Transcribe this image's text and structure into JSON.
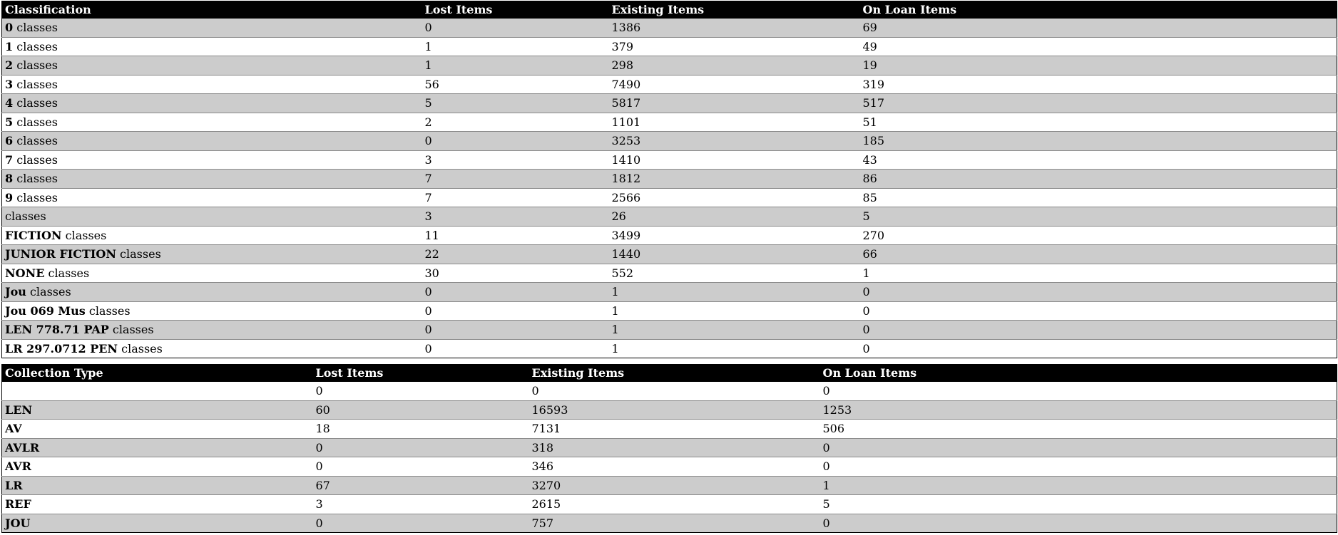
{
  "classification_table": {
    "headers": {
      "col1": "Classification",
      "col2": "Lost Items",
      "col3": "Existing Items",
      "col4": "On Loan Items"
    },
    "rows": [
      {
        "code": "0",
        "suffix": " classes",
        "lost": "0",
        "existing": "1386",
        "on_loan": "69"
      },
      {
        "code": "1",
        "suffix": " classes",
        "lost": "1",
        "existing": "379",
        "on_loan": "49"
      },
      {
        "code": "2",
        "suffix": " classes",
        "lost": "1",
        "existing": "298",
        "on_loan": "19"
      },
      {
        "code": "3",
        "suffix": " classes",
        "lost": "56",
        "existing": "7490",
        "on_loan": "319"
      },
      {
        "code": "4",
        "suffix": " classes",
        "lost": "5",
        "existing": "5817",
        "on_loan": "517"
      },
      {
        "code": "5",
        "suffix": " classes",
        "lost": "2",
        "existing": "1101",
        "on_loan": "51"
      },
      {
        "code": "6",
        "suffix": " classes",
        "lost": "0",
        "existing": "3253",
        "on_loan": "185"
      },
      {
        "code": "7",
        "suffix": " classes",
        "lost": "3",
        "existing": "1410",
        "on_loan": "43"
      },
      {
        "code": "8",
        "suffix": " classes",
        "lost": "7",
        "existing": "1812",
        "on_loan": "86"
      },
      {
        "code": "9",
        "suffix": " classes",
        "lost": "7",
        "existing": "2566",
        "on_loan": "85"
      },
      {
        "code": "",
        "suffix": "classes",
        "lost": "3",
        "existing": "26",
        "on_loan": "5"
      },
      {
        "code": "FICTION",
        "suffix": " classes",
        "lost": "11",
        "existing": "3499",
        "on_loan": "270"
      },
      {
        "code": "JUNIOR FICTION",
        "suffix": " classes",
        "lost": "22",
        "existing": "1440",
        "on_loan": "66"
      },
      {
        "code": "NONE",
        "suffix": " classes",
        "lost": "30",
        "existing": "552",
        "on_loan": "1"
      },
      {
        "code": "Jou",
        "suffix": " classes",
        "lost": "0",
        "existing": "1",
        "on_loan": "0"
      },
      {
        "code": "Jou 069 Mus",
        "suffix": " classes",
        "lost": "0",
        "existing": "1",
        "on_loan": "0"
      },
      {
        "code": "LEN 778.71 PAP",
        "suffix": " classes",
        "lost": "0",
        "existing": "1",
        "on_loan": "0"
      },
      {
        "code": "LR 297.0712 PEN",
        "suffix": " classes",
        "lost": "0",
        "existing": "1",
        "on_loan": "0"
      }
    ]
  },
  "collection_table": {
    "headers": {
      "col1": "Collection Type",
      "col2": "Lost Items",
      "col3": "Existing Items",
      "col4": "On Loan Items"
    },
    "rows": [
      {
        "type": "",
        "lost": "0",
        "existing": "0",
        "on_loan": "0"
      },
      {
        "type": "LEN",
        "lost": "60",
        "existing": "16593",
        "on_loan": "1253"
      },
      {
        "type": "AV",
        "lost": "18",
        "existing": "7131",
        "on_loan": "506"
      },
      {
        "type": "AVLR",
        "lost": "0",
        "existing": "318",
        "on_loan": "0"
      },
      {
        "type": "AVR",
        "lost": "0",
        "existing": "346",
        "on_loan": "0"
      },
      {
        "type": "LR",
        "lost": "67",
        "existing": "3270",
        "on_loan": "1"
      },
      {
        "type": "REF",
        "lost": "3",
        "existing": "2615",
        "on_loan": "5"
      },
      {
        "type": "JOU",
        "lost": "0",
        "existing": "757",
        "on_loan": "0"
      }
    ]
  },
  "colors": {
    "header_bg": "#000000",
    "header_text": "#ffffff",
    "row_shade": "#cccccc",
    "row_plain": "#ffffff"
  }
}
